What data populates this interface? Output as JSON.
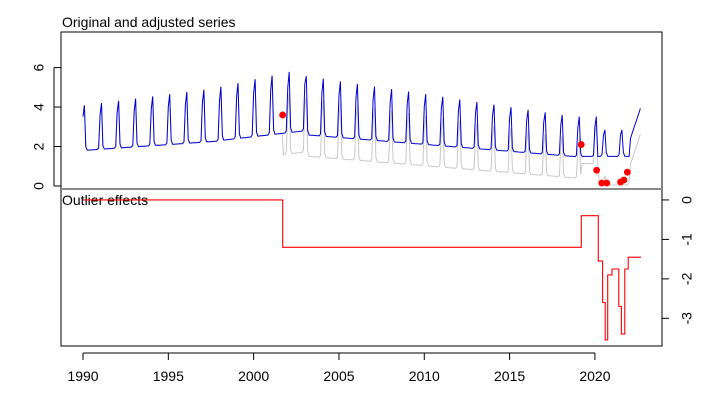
{
  "chart_data": [
    {
      "type": "line",
      "title": "Original and adjusted series",
      "x_range": [
        1990,
        2022.7
      ],
      "ylim": [
        0,
        7.5
      ],
      "y_ticks": [
        0,
        2,
        4,
        6
      ],
      "series": [],
      "outlier_points": [
        {
          "x": 2001.7,
          "y": 3.6
        },
        {
          "x": 2019.2,
          "y": 2.1
        },
        {
          "x": 2020.1,
          "y": 0.8
        },
        {
          "x": 2020.4,
          "y": 0.15
        },
        {
          "x": 2020.7,
          "y": 0.15
        },
        {
          "x": 2021.5,
          "y": 0.2
        },
        {
          "x": 2021.7,
          "y": 0.3
        },
        {
          "x": 2021.9,
          "y": 0.7
        }
      ],
      "colors": {
        "original": "#c8c8c8",
        "adjusted": "#0000cd",
        "outliers": "#ff0000"
      }
    },
    {
      "type": "line",
      "title": "Outlier effects",
      "ylim": [
        -3.6,
        0.1
      ],
      "y_ticks": [
        0,
        -1,
        -2,
        -3
      ],
      "y_axis_side": "right",
      "series": [
        {
          "x": [
            1990,
            2001.7,
            2001.7,
            2019.2,
            2019.2,
            2020.2,
            2020.2,
            2020.45,
            2020.45,
            2020.6,
            2020.6,
            2020.75,
            2020.75,
            2021.0,
            2021.0,
            2021.4,
            2021.4,
            2021.55,
            2021.55,
            2021.75,
            2021.75,
            2021.95,
            2021.95,
            2022.7
          ],
          "y": [
            0,
            0,
            -1.2,
            -1.2,
            -0.4,
            -0.4,
            -1.55,
            -1.55,
            -2.6,
            -2.6,
            -3.55,
            -3.55,
            -1.9,
            -1.9,
            -1.75,
            -1.75,
            -2.7,
            -2.7,
            -3.4,
            -3.4,
            -1.75,
            -1.75,
            -1.45,
            -1.45
          ]
        }
      ],
      "colors": {
        "line": "#ff0000"
      }
    }
  ],
  "x_axis": {
    "ticks": [
      "1990",
      "1995",
      "2000",
      "2005",
      "2010",
      "2015",
      "2020"
    ],
    "tick_values": [
      1990,
      1995,
      2000,
      2005,
      2010,
      2015,
      2020
    ],
    "range": [
      1990,
      2022.7
    ]
  },
  "y_tick_labels_top": [
    "0",
    "2",
    "4",
    "6"
  ],
  "y_tick_labels_bottom": [
    "0",
    "-1",
    "-2",
    "-3"
  ]
}
